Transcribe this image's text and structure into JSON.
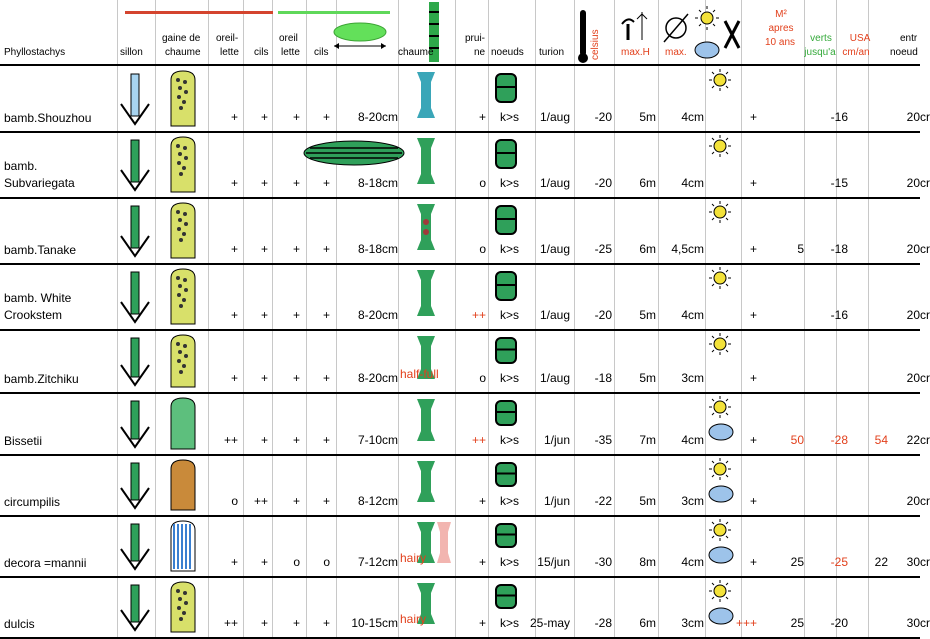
{
  "header": {
    "genus": "Phyllostachys",
    "sillon": "sillon",
    "gaine_1": "gaine de",
    "gaine_2": "chaume",
    "oreillette_1a": "oreil-",
    "oreillette_1b": "lette",
    "cils_1": "cils",
    "oreillette_2a": "oreil",
    "oreillette_2b": "lette",
    "cils_2": "cils",
    "chaume": "chaume",
    "pruine_a": "prui-",
    "pruine_b": "ne",
    "noeuds": "noeuds",
    "turion": "turion",
    "celsius": "celsius",
    "max_h": "max.H",
    "max": "max.",
    "m2_a": "M²",
    "m2_b": "apres",
    "m2_c": "10 ans",
    "verts_a": "verts",
    "verts_b": "jusqu'a",
    "usa_a": "USA",
    "usa_b": "cm/an",
    "entre_a": "entr",
    "entre_b": "noeud"
  },
  "colors": {
    "culm_green": "#2fa05a",
    "sheath_yellow": "#d8e06a",
    "accent_red": "#e2401c",
    "accent_green": "#34a93a",
    "sun_yellow": "#f3e23a",
    "cloud_blue": "#9dc3ea"
  },
  "rows": [
    {
      "name": "bamb.Shouzhou",
      "oreil1": "+",
      "cils1": "+",
      "oreil2": "+",
      "cils2": "+",
      "diam": "8-20cm",
      "chaume_note": "",
      "pruine": "+",
      "noeuds": "k>s",
      "turion": "1/aug",
      "celsius": "-20",
      "maxh": "5m",
      "max": "4cm",
      "sun": "sun",
      "x": "+",
      "m2": "",
      "verts": "-16",
      "usa": "",
      "entre": "20cr"
    },
    {
      "name": "bamb.\nSubvariegata",
      "oreil1": "+",
      "cils1": "+",
      "oreil2": "+",
      "cils2": "+",
      "diam": "8-18cm",
      "chaume_note": "",
      "pruine": "o",
      "noeuds": "k>s",
      "turion": "1/aug",
      "celsius": "-20",
      "maxh": "6m",
      "max": "4cm",
      "sun": "sun",
      "x": "+",
      "m2": "",
      "verts": "-15",
      "usa": "",
      "entre": "20cr"
    },
    {
      "name": "bamb.Tanake",
      "oreil1": "+",
      "cils1": "+",
      "oreil2": "+",
      "cils2": "+",
      "diam": "8-18cm",
      "chaume_note": "",
      "pruine": "o",
      "noeuds": "k>s",
      "turion": "1/aug",
      "celsius": "-25",
      "maxh": "6m",
      "max": "4,5cm",
      "sun": "sun",
      "x": "+",
      "m2": "5",
      "verts": "-18",
      "usa": "",
      "entre": "20cr"
    },
    {
      "name": "bamb.  White\nCrookstem",
      "oreil1": "+",
      "cils1": "+",
      "oreil2": "+",
      "cils2": "+",
      "diam": "8-20cm",
      "chaume_note": "",
      "pruine": "++",
      "noeuds": "k>s",
      "turion": "1/aug",
      "celsius": "-20",
      "maxh": "5m",
      "max": "4cm",
      "sun": "sun",
      "x": "+",
      "m2": "",
      "verts": "-16",
      "usa": "",
      "entre": "20cr"
    },
    {
      "name": "bamb.Zitchiku",
      "oreil1": "+",
      "cils1": "+",
      "oreil2": "+",
      "cils2": "+",
      "diam": "8-20cm",
      "chaume_note": "half-full",
      "pruine": "o",
      "noeuds": "k>s",
      "turion": "1/aug",
      "celsius": "-18",
      "maxh": "5m",
      "max": "3cm",
      "sun": "sun",
      "x": "+",
      "m2": "",
      "verts": "",
      "usa": "",
      "entre": "20cr"
    },
    {
      "name": "Bissetii",
      "oreil1": "++",
      "cils1": "+",
      "oreil2": "+",
      "cils2": "+",
      "diam": "7-10cm",
      "chaume_note": "",
      "pruine": "++",
      "noeuds": "k>s",
      "turion": "1/jun",
      "celsius": "-35",
      "maxh": "7m",
      "max": "4cm",
      "sun": "sun-cloud",
      "x": "+",
      "m2": "50",
      "verts": "-28",
      "usa": "54",
      "entre": "22cr"
    },
    {
      "name": "circumpilis",
      "oreil1": "o",
      "cils1": "++",
      "oreil2": "+",
      "cils2": "+",
      "diam": "8-12cm",
      "chaume_note": "",
      "pruine": "+",
      "noeuds": "k>s",
      "turion": "1/jun",
      "celsius": "-22",
      "maxh": "5m",
      "max": "3cm",
      "sun": "sun-cloud",
      "x": "+",
      "m2": "",
      "verts": "",
      "usa": "",
      "entre": "20cr"
    },
    {
      "name": "decora =mannii",
      "oreil1": "+",
      "cils1": "+",
      "oreil2": "o",
      "cils2": "o",
      "diam": "7-12cm",
      "chaume_note": "hairy",
      "pruine": "+",
      "noeuds": "k>s",
      "turion": "15/jun",
      "celsius": "-30",
      "maxh": "8m",
      "max": "4cm",
      "sun": "sun-cloud",
      "x": "+",
      "m2": "25",
      "verts": "-25",
      "usa": "22",
      "entre": "30cr"
    },
    {
      "name": "dulcis",
      "oreil1": "++",
      "cils1": "+",
      "oreil2": "+",
      "cils2": "+",
      "diam": "10-15cm",
      "chaume_note": "hairy",
      "pruine": "+",
      "noeuds": "k>s",
      "turion": "25-may",
      "celsius": "-28",
      "maxh": "6m",
      "max": "3cm",
      "sun": "sun-cloud",
      "x": "+++",
      "m2": "25",
      "verts": "-20",
      "usa": "",
      "entre": "30cr"
    }
  ]
}
